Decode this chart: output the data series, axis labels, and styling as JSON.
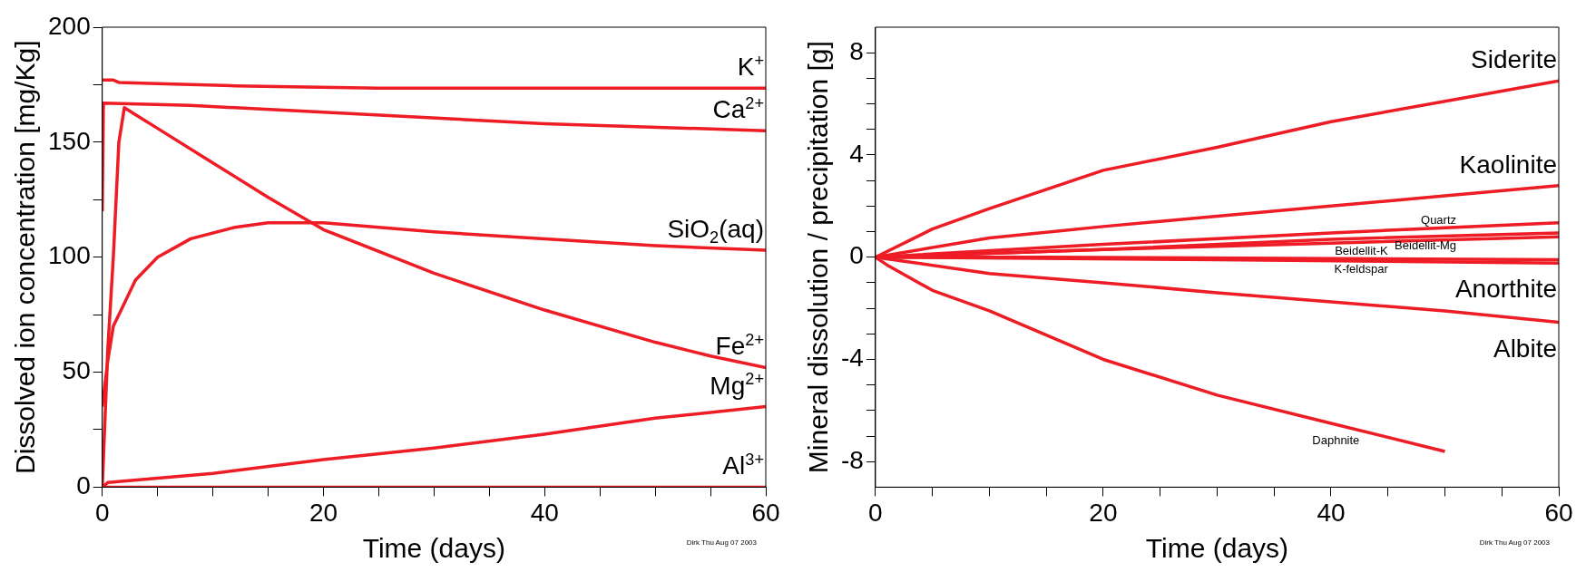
{
  "chart_data": [
    {
      "type": "line",
      "xlabel": "Time (days)",
      "ylabel": "Dissolved ion concentration [mg/Kg]",
      "xlim": [
        0,
        60
      ],
      "ylim": [
        0,
        200
      ],
      "marker": "none",
      "xticks": [
        0,
        {
          "value": 5,
          "label": null
        },
        {
          "value": 10,
          "label": null
        },
        {
          "value": 15,
          "label": null
        },
        20,
        {
          "value": 25,
          "label": null
        },
        {
          "value": 30,
          "label": null
        },
        {
          "value": 35,
          "label": null
        },
        40,
        {
          "value": 45,
          "label": null
        },
        {
          "value": 50,
          "label": null
        },
        {
          "value": 55,
          "label": null
        },
        60
      ],
      "yticks": [
        0,
        {
          "value": 25,
          "label": null
        },
        50,
        {
          "value": 75,
          "label": null
        },
        100,
        {
          "value": 125,
          "label": null
        },
        150,
        {
          "value": 175,
          "label": null
        },
        200
      ],
      "series": [
        {
          "name": "K$^{+}$",
          "color": "#ee1c25",
          "x": [
            0,
            1,
            1.5,
            5,
            12,
            25,
            60
          ],
          "values": [
            177,
            177,
            176,
            175.5,
            174.5,
            173.5,
            173.5
          ]
        },
        {
          "name": "Ca$^{2+}$",
          "color": "#ee1c25",
          "x": [
            0,
            0.1,
            8,
            20,
            40,
            60
          ],
          "values": [
            120,
            167,
            166,
            163,
            158,
            155
          ]
        },
        {
          "name": "SiO$_{2}$(aq)",
          "color": "#ee1c25",
          "x": [
            0,
            0.5,
            1,
            2,
            3,
            5,
            8,
            12,
            15,
            20,
            30,
            40,
            50,
            60
          ],
          "values": [
            35,
            55,
            70,
            80,
            90,
            100,
            108,
            113,
            115,
            115,
            111,
            108,
            105,
            103
          ]
        },
        {
          "name": "Fe$^{2+}$",
          "color": "#ee1c25",
          "x": [
            0,
            0.5,
            1,
            1.5,
            2,
            3,
            5,
            10,
            15,
            20,
            30,
            40,
            50,
            55,
            60
          ],
          "values": [
            0,
            60,
            100,
            150,
            165,
            162,
            156,
            141,
            126,
            112,
            93,
            77,
            63,
            57,
            52
          ]
        },
        {
          "name": "Mg$^{2+}$",
          "color": "#ee1c25",
          "x": [
            0,
            0.5,
            10,
            20,
            30,
            40,
            50,
            60
          ],
          "values": [
            0,
            2,
            6,
            12,
            17,
            23,
            30,
            35
          ]
        },
        {
          "name": "Al$^{3+}$",
          "color": "#ee1c25",
          "x": [
            0,
            60
          ],
          "values": [
            0,
            0
          ]
        }
      ],
      "annotations": [
        "Dirk Thu Aug 07 2003"
      ]
    },
    {
      "type": "line",
      "xlabel": "Time (days)",
      "ylabel": "Mineral dissolution / precipitation [g]",
      "xlim": [
        0,
        60
      ],
      "ylim": [
        -9,
        9
      ],
      "marker": "none",
      "xticks": [
        0,
        {
          "value": 5,
          "label": null
        },
        {
          "value": 10,
          "label": null
        },
        {
          "value": 15,
          "label": null
        },
        20,
        {
          "value": 25,
          "label": null
        },
        {
          "value": 30,
          "label": null
        },
        {
          "value": 35,
          "label": null
        },
        40,
        {
          "value": 45,
          "label": null
        },
        {
          "value": 50,
          "label": null
        },
        {
          "value": 55,
          "label": null
        },
        60
      ],
      "yticks": [
        -8,
        {
          "value": -7,
          "label": null
        },
        {
          "value": -6,
          "label": null
        },
        {
          "value": -5,
          "label": null
        },
        -4,
        {
          "value": -3,
          "label": null
        },
        {
          "value": -2,
          "label": null
        },
        {
          "value": -1,
          "label": null
        },
        0,
        {
          "value": 1,
          "label": null
        },
        {
          "value": 2,
          "label": null
        },
        {
          "value": 3,
          "label": null
        },
        4,
        {
          "value": 5,
          "label": null
        },
        {
          "value": 6,
          "label": null
        },
        {
          "value": 7,
          "label": null
        },
        8
      ],
      "series": [
        {
          "name": "Siderite",
          "color": "#ee1c25",
          "x": [
            0,
            5,
            10,
            20,
            30,
            40,
            50,
            60
          ],
          "values": [
            0,
            1.1,
            1.9,
            3.4,
            4.3,
            5.3,
            6.1,
            6.9
          ]
        },
        {
          "name": "Kaolinite",
          "color": "#ee1c25",
          "x": [
            0,
            10,
            20,
            30,
            40,
            50,
            60
          ],
          "values": [
            0,
            0.75,
            1.2,
            1.6,
            2.0,
            2.4,
            2.8
          ]
        },
        {
          "name": "Quartz",
          "color": "#ee1c25",
          "x": [
            0,
            20,
            40,
            60
          ],
          "values": [
            0,
            0.5,
            0.95,
            1.35
          ]
        },
        {
          "name": "Anorthite",
          "color": "#ee1c25",
          "x": [
            0,
            30,
            60
          ],
          "values": [
            0,
            -0.1,
            -0.23
          ]
        },
        {
          "name": "Albite",
          "color": "#ee1c25",
          "x": [
            0,
            10,
            20,
            30,
            40,
            50,
            60
          ],
          "values": [
            0,
            -0.64,
            -1.0,
            -1.39,
            -1.75,
            -2.1,
            -2.55
          ]
        },
        {
          "name": "Daphnite",
          "color": "#ee1c25",
          "x": [
            0,
            1,
            5,
            10,
            20,
            30,
            40,
            50
          ],
          "values": [
            0,
            -0.3,
            -1.3,
            -2.1,
            -4.0,
            -5.4,
            -6.5,
            -7.6
          ]
        },
        {
          "name": "Beidellit-Mg",
          "color": "#ee1c25",
          "x": [
            0,
            20,
            40,
            60
          ],
          "values": [
            0,
            0.3,
            0.7,
            0.95
          ]
        },
        {
          "name": "Beidellit-K",
          "color": "#ee1c25",
          "x": [
            0,
            20,
            40,
            60
          ],
          "values": [
            0,
            0.3,
            0.55,
            0.8
          ]
        },
        {
          "name": "K-feldspar",
          "color": "#ee1c25",
          "x": [
            0,
            15,
            60
          ],
          "values": [
            0,
            0,
            -0.1
          ]
        }
      ],
      "annotations": [
        "Dirk Thu Aug 07 2003"
      ]
    }
  ]
}
